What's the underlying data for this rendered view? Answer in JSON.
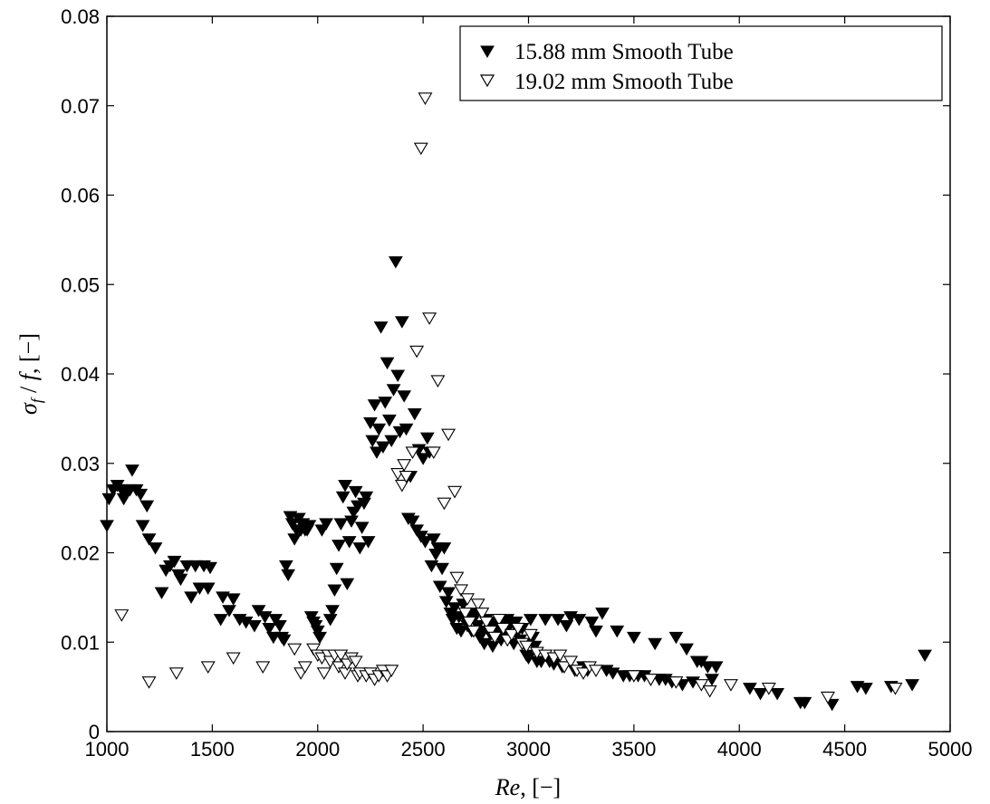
{
  "chart_data": {
    "type": "scatter",
    "xlabel": "Re, [−]",
    "ylabel": "σ_f / f, [−]",
    "xlim": [
      1000,
      5000
    ],
    "ylim": [
      0,
      0.08
    ],
    "x_ticks": [
      "1000",
      "1500",
      "2000",
      "2500",
      "3000",
      "3500",
      "4000",
      "4500",
      "5000"
    ],
    "y_ticks": [
      "0",
      "0.01",
      "0.02",
      "0.03",
      "0.04",
      "0.05",
      "0.06",
      "0.07",
      "0.08"
    ],
    "grid": false,
    "legend_position": "top-right",
    "series": [
      {
        "name": "15.88 mm Smooth Tube",
        "marker": "filled-down-triangle",
        "color": "#000000",
        "points": [
          [
            1000,
            0.023
          ],
          [
            1010,
            0.026
          ],
          [
            1030,
            0.027
          ],
          [
            1050,
            0.0275
          ],
          [
            1070,
            0.027
          ],
          [
            1080,
            0.026
          ],
          [
            1090,
            0.0265
          ],
          [
            1110,
            0.027
          ],
          [
            1120,
            0.0292
          ],
          [
            1140,
            0.027
          ],
          [
            1160,
            0.0265
          ],
          [
            1170,
            0.023
          ],
          [
            1190,
            0.0252
          ],
          [
            1200,
            0.0215
          ],
          [
            1230,
            0.0205
          ],
          [
            1260,
            0.0155
          ],
          [
            1280,
            0.018
          ],
          [
            1300,
            0.0185
          ],
          [
            1320,
            0.019
          ],
          [
            1340,
            0.0175
          ],
          [
            1350,
            0.017
          ],
          [
            1380,
            0.0185
          ],
          [
            1400,
            0.015
          ],
          [
            1420,
            0.0185
          ],
          [
            1440,
            0.016
          ],
          [
            1460,
            0.0185
          ],
          [
            1480,
            0.016
          ],
          [
            1490,
            0.0183
          ],
          [
            1540,
            0.0125
          ],
          [
            1550,
            0.015
          ],
          [
            1580,
            0.0135
          ],
          [
            1600,
            0.0148
          ],
          [
            1630,
            0.0125
          ],
          [
            1660,
            0.0122
          ],
          [
            1700,
            0.0118
          ],
          [
            1720,
            0.0135
          ],
          [
            1750,
            0.0128
          ],
          [
            1770,
            0.0115
          ],
          [
            1790,
            0.0105
          ],
          [
            1800,
            0.0125
          ],
          [
            1820,
            0.0118
          ],
          [
            1830,
            0.0105
          ],
          [
            1840,
            0.0102
          ],
          [
            1850,
            0.0185
          ],
          [
            1860,
            0.0175
          ],
          [
            1870,
            0.024
          ],
          [
            1880,
            0.0232
          ],
          [
            1890,
            0.0215
          ],
          [
            1900,
            0.0225
          ],
          [
            1910,
            0.0238
          ],
          [
            1920,
            0.0225
          ],
          [
            1930,
            0.0232
          ],
          [
            1940,
            0.0225
          ],
          [
            1950,
            0.0225
          ],
          [
            1960,
            0.023
          ],
          [
            1970,
            0.0128
          ],
          [
            1980,
            0.0122
          ],
          [
            1990,
            0.0118
          ],
          [
            2000,
            0.0112
          ],
          [
            2010,
            0.0105
          ],
          [
            2020,
            0.0225
          ],
          [
            2040,
            0.0232
          ],
          [
            2060,
            0.0125
          ],
          [
            2070,
            0.0135
          ],
          [
            2080,
            0.0158
          ],
          [
            2090,
            0.0182
          ],
          [
            2100,
            0.0208
          ],
          [
            2110,
            0.0232
          ],
          [
            2120,
            0.0262
          ],
          [
            2130,
            0.0275
          ],
          [
            2140,
            0.0165
          ],
          [
            2150,
            0.0212
          ],
          [
            2160,
            0.0235
          ],
          [
            2170,
            0.0245
          ],
          [
            2180,
            0.0268
          ],
          [
            2190,
            0.0252
          ],
          [
            2200,
            0.0205
          ],
          [
            2210,
            0.0228
          ],
          [
            2220,
            0.0255
          ],
          [
            2230,
            0.0262
          ],
          [
            2240,
            0.0212
          ],
          [
            2250,
            0.0345
          ],
          [
            2260,
            0.0325
          ],
          [
            2270,
            0.0365
          ],
          [
            2280,
            0.0312
          ],
          [
            2290,
            0.0338
          ],
          [
            2300,
            0.0452
          ],
          [
            2310,
            0.0318
          ],
          [
            2320,
            0.0368
          ],
          [
            2330,
            0.0412
          ],
          [
            2340,
            0.0348
          ],
          [
            2350,
            0.0325
          ],
          [
            2360,
            0.0382
          ],
          [
            2370,
            0.0525
          ],
          [
            2380,
            0.0398
          ],
          [
            2390,
            0.0335
          ],
          [
            2400,
            0.0458
          ],
          [
            2410,
            0.0375
          ],
          [
            2420,
            0.0338
          ],
          [
            2430,
            0.0238
          ],
          [
            2440,
            0.0285
          ],
          [
            2450,
            0.0235
          ],
          [
            2460,
            0.0355
          ],
          [
            2470,
            0.0225
          ],
          [
            2480,
            0.0315
          ],
          [
            2490,
            0.0218
          ],
          [
            2500,
            0.0305
          ],
          [
            2510,
            0.0212
          ],
          [
            2520,
            0.0328
          ],
          [
            2530,
            0.0312
          ],
          [
            2540,
            0.0185
          ],
          [
            2550,
            0.0215
          ],
          [
            2560,
            0.0198
          ],
          [
            2570,
            0.0205
          ],
          [
            2580,
            0.0162
          ],
          [
            2590,
            0.0182
          ],
          [
            2600,
            0.0205
          ],
          [
            2610,
            0.0145
          ],
          [
            2620,
            0.0155
          ],
          [
            2630,
            0.0132
          ],
          [
            2640,
            0.0125
          ],
          [
            2650,
            0.0138
          ],
          [
            2660,
            0.0115
          ],
          [
            2670,
            0.0128
          ],
          [
            2680,
            0.0112
          ],
          [
            2690,
            0.0142
          ],
          [
            2700,
            0.0125
          ],
          [
            2710,
            0.0118
          ],
          [
            2720,
            0.0128
          ],
          [
            2730,
            0.0112
          ],
          [
            2740,
            0.0125
          ],
          [
            2750,
            0.0132
          ],
          [
            2760,
            0.0118
          ],
          [
            2770,
            0.0105
          ],
          [
            2780,
            0.0112
          ],
          [
            2790,
            0.0098
          ],
          [
            2800,
            0.0125
          ],
          [
            2810,
            0.0118
          ],
          [
            2820,
            0.0108
          ],
          [
            2830,
            0.0095
          ],
          [
            2840,
            0.0122
          ],
          [
            2850,
            0.0115
          ],
          [
            2860,
            0.0108
          ],
          [
            2870,
            0.0102
          ],
          [
            2880,
            0.0122
          ],
          [
            2890,
            0.0112
          ],
          [
            2900,
            0.0125
          ],
          [
            2910,
            0.0118
          ],
          [
            2920,
            0.0108
          ],
          [
            2930,
            0.0098
          ],
          [
            2940,
            0.0122
          ],
          [
            2950,
            0.0112
          ],
          [
            2960,
            0.0102
          ],
          [
            2970,
            0.0115
          ],
          [
            2980,
            0.0098
          ],
          [
            2990,
            0.0085
          ],
          [
            3000,
            0.0082
          ],
          [
            3010,
            0.0125
          ],
          [
            3020,
            0.0105
          ],
          [
            3030,
            0.0095
          ],
          [
            3040,
            0.0078
          ],
          [
            3060,
            0.0078
          ],
          [
            3080,
            0.0125
          ],
          [
            3100,
            0.0078
          ],
          [
            3120,
            0.0075
          ],
          [
            3140,
            0.0125
          ],
          [
            3160,
            0.0072
          ],
          [
            3180,
            0.0118
          ],
          [
            3200,
            0.0128
          ],
          [
            3220,
            0.0068
          ],
          [
            3240,
            0.0125
          ],
          [
            3260,
            0.0072
          ],
          [
            3280,
            0.0068
          ],
          [
            3300,
            0.0122
          ],
          [
            3320,
            0.0112
          ],
          [
            3350,
            0.0132
          ],
          [
            3370,
            0.0068
          ],
          [
            3400,
            0.0065
          ],
          [
            3420,
            0.0112
          ],
          [
            3450,
            0.0062
          ],
          [
            3480,
            0.0062
          ],
          [
            3500,
            0.0105
          ],
          [
            3520,
            0.0062
          ],
          [
            3550,
            0.0062
          ],
          [
            3580,
            0.0058
          ],
          [
            3600,
            0.0098
          ],
          [
            3620,
            0.0058
          ],
          [
            3650,
            0.0058
          ],
          [
            3680,
            0.0055
          ],
          [
            3700,
            0.0105
          ],
          [
            3730,
            0.0052
          ],
          [
            3750,
            0.0092
          ],
          [
            3780,
            0.0055
          ],
          [
            3800,
            0.0078
          ],
          [
            3820,
            0.0078
          ],
          [
            3850,
            0.0072
          ],
          [
            3870,
            0.0058
          ],
          [
            3890,
            0.0072
          ],
          [
            4050,
            0.0048
          ],
          [
            4100,
            0.0042
          ],
          [
            4180,
            0.0042
          ],
          [
            4290,
            0.0032
          ],
          [
            4310,
            0.0032
          ],
          [
            4440,
            0.003
          ],
          [
            4560,
            0.005
          ],
          [
            4600,
            0.0048
          ],
          [
            4720,
            0.005
          ],
          [
            4820,
            0.0052
          ],
          [
            4880,
            0.0085
          ]
        ]
      },
      {
        "name": "19.02 mm Smooth Tube",
        "marker": "open-down-triangle",
        "color": "#000000",
        "points": [
          [
            1070,
            0.013
          ],
          [
            1200,
            0.0055
          ],
          [
            1330,
            0.0065
          ],
          [
            1480,
            0.0072
          ],
          [
            1600,
            0.0082
          ],
          [
            1740,
            0.0072
          ],
          [
            1890,
            0.0092
          ],
          [
            1920,
            0.0065
          ],
          [
            1940,
            0.0072
          ],
          [
            1980,
            0.0092
          ],
          [
            2000,
            0.0085
          ],
          [
            2020,
            0.0082
          ],
          [
            2030,
            0.0065
          ],
          [
            2050,
            0.0085
          ],
          [
            2060,
            0.0078
          ],
          [
            2080,
            0.0085
          ],
          [
            2100,
            0.0072
          ],
          [
            2110,
            0.0085
          ],
          [
            2130,
            0.0065
          ],
          [
            2140,
            0.0075
          ],
          [
            2160,
            0.0082
          ],
          [
            2180,
            0.0078
          ],
          [
            2190,
            0.0062
          ],
          [
            2200,
            0.0065
          ],
          [
            2230,
            0.0062
          ],
          [
            2250,
            0.0065
          ],
          [
            2270,
            0.0058
          ],
          [
            2290,
            0.0062
          ],
          [
            2310,
            0.0068
          ],
          [
            2330,
            0.0062
          ],
          [
            2350,
            0.0068
          ],
          [
            2380,
            0.0288
          ],
          [
            2400,
            0.0275
          ],
          [
            2410,
            0.0298
          ],
          [
            2420,
            0.0285
          ],
          [
            2450,
            0.0312
          ],
          [
            2470,
            0.0425
          ],
          [
            2490,
            0.0652
          ],
          [
            2510,
            0.0708
          ],
          [
            2530,
            0.0462
          ],
          [
            2550,
            0.0312
          ],
          [
            2570,
            0.0392
          ],
          [
            2600,
            0.0255
          ],
          [
            2620,
            0.0332
          ],
          [
            2650,
            0.0268
          ],
          [
            2660,
            0.0172
          ],
          [
            2680,
            0.0158
          ],
          [
            2700,
            0.0132
          ],
          [
            2710,
            0.0148
          ],
          [
            2720,
            0.0122
          ],
          [
            2740,
            0.0112
          ],
          [
            2760,
            0.0142
          ],
          [
            2780,
            0.0132
          ],
          [
            2800,
            0.0122
          ],
          [
            2820,
            0.0112
          ],
          [
            2840,
            0.0105
          ],
          [
            2860,
            0.0125
          ],
          [
            2880,
            0.0115
          ],
          [
            2900,
            0.0102
          ],
          [
            2920,
            0.0108
          ],
          [
            2950,
            0.0115
          ],
          [
            2970,
            0.0098
          ],
          [
            2990,
            0.0095
          ],
          [
            3010,
            0.0108
          ],
          [
            3040,
            0.0088
          ],
          [
            3080,
            0.0085
          ],
          [
            3120,
            0.0082
          ],
          [
            3150,
            0.0085
          ],
          [
            3170,
            0.0072
          ],
          [
            3200,
            0.0078
          ],
          [
            3230,
            0.0068
          ],
          [
            3260,
            0.0065
          ],
          [
            3290,
            0.0072
          ],
          [
            3320,
            0.0068
          ],
          [
            3500,
            0.0062
          ],
          [
            3580,
            0.0058
          ],
          [
            3700,
            0.0055
          ],
          [
            3820,
            0.0052
          ],
          [
            3860,
            0.0045
          ],
          [
            3960,
            0.0052
          ],
          [
            4140,
            0.0048
          ],
          [
            4420,
            0.0038
          ],
          [
            4740,
            0.0048
          ]
        ]
      }
    ]
  }
}
